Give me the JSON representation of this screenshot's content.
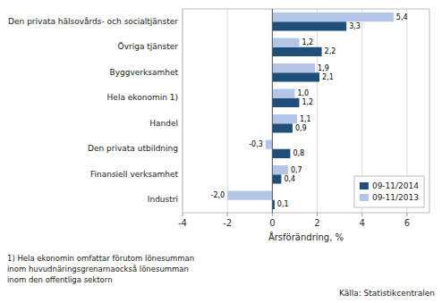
{
  "chart_data": {
    "type": "bar",
    "orientation": "horizontal",
    "categories": [
      "Den privata hälsovårds- och socialtjänster",
      "Övriga tjänster",
      "Byggverksamhet",
      "Hela ekonomin 1)",
      "Handel",
      "Den privata utbildning",
      "Finansiell verksamhet",
      "Industri"
    ],
    "series": [
      {
        "name": "09-11/2014",
        "color": "#1f4e79",
        "values": [
          3.3,
          2.2,
          2.1,
          1.2,
          0.9,
          0.8,
          0.4,
          0.1
        ],
        "value_labels": [
          "3,3",
          "2,2",
          "2,1",
          "1,2",
          "0,9",
          "0,8",
          "0,4",
          "0,1"
        ]
      },
      {
        "name": "09-11/2013",
        "color": "#b4c6e7",
        "values": [
          5.4,
          1.2,
          1.9,
          1.0,
          1.1,
          -0.3,
          0.7,
          -2.0
        ],
        "value_labels": [
          "5,4",
          "1,2",
          "1,9",
          "1,0",
          "1,1",
          "-0,3",
          "0,7",
          "-2,0"
        ]
      }
    ],
    "xlabel": "Årsförändring, %",
    "xlim": [
      -4,
      7
    ],
    "xticks": [
      -4,
      -2,
      0,
      2,
      4,
      6
    ],
    "grid": true,
    "legend": "lower right",
    "data_labels": true,
    "annotations": [
      "1) Hela ekonomin omfattar förutom lönesumman",
      "inom huvudnäringsgrenarnaockså lönesumman",
      "inom den offentliga sektorn",
      "Källa:  Statistikcentralen"
    ]
  }
}
